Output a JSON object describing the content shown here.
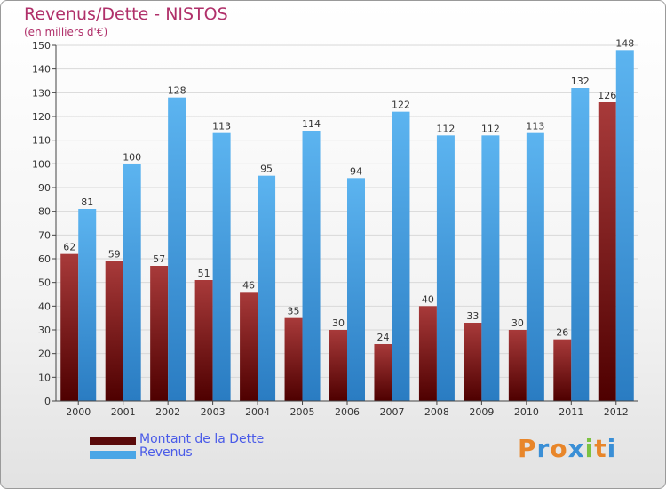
{
  "title": "Revenus/Dette - NISTOS",
  "subtitle": "(en milliers d'€)",
  "colors": {
    "dette": "#7a1414",
    "revenus": "#4aa6e6",
    "axis_text": "#333333",
    "grid": "#d8d8d8"
  },
  "chart_data": {
    "type": "bar",
    "title": "Revenus/Dette - NISTOS",
    "ylabel": "(en milliers d'€)",
    "xlabel": "",
    "ylim": [
      0,
      150
    ],
    "yticks": [
      0,
      10,
      20,
      30,
      40,
      50,
      60,
      70,
      80,
      90,
      100,
      110,
      120,
      130,
      140,
      150
    ],
    "grid": true,
    "legend_position": "bottom-left",
    "categories": [
      "2000",
      "2001",
      "2002",
      "2003",
      "2004",
      "2005",
      "2006",
      "2007",
      "2008",
      "2009",
      "2010",
      "2011",
      "2012"
    ],
    "series": [
      {
        "name": "Montant de la Dette",
        "values": [
          62,
          59,
          57,
          51,
          46,
          35,
          30,
          24,
          40,
          33,
          30,
          26,
          126
        ]
      },
      {
        "name": "Revenus",
        "values": [
          81,
          100,
          128,
          113,
          95,
          114,
          94,
          122,
          112,
          112,
          113,
          132,
          148
        ]
      }
    ]
  },
  "legend": {
    "dette_label": "Montant de la Dette",
    "revenus_label": "Revenus"
  },
  "logo": {
    "text": "Proxiti",
    "letter_colors": [
      "#e8862a",
      "#3a8fd6",
      "#e8862a",
      "#3a8fd6",
      "#7cc242",
      "#e8862a",
      "#3a8fd6"
    ]
  }
}
